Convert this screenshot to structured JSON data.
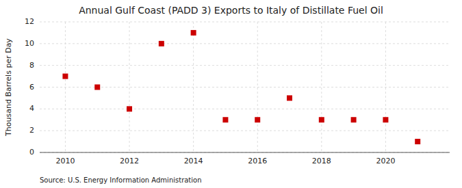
{
  "chart_data": {
    "type": "scatter",
    "title": "Annual Gulf Coast (PADD 3) Exports to Italy of Distillate Fuel Oil",
    "y_label": "Thousand Barrels per Day",
    "annotations": [
      "Source: U.S. Energy Information Administration"
    ],
    "x": [
      2010,
      2011,
      2012,
      2013,
      2014,
      2015,
      2016,
      2017,
      2018,
      2019,
      2020,
      2021
    ],
    "values": [
      7,
      6,
      4,
      10,
      11,
      3,
      3,
      5,
      3,
      3,
      3,
      1
    ],
    "color": "#cc0000",
    "marker": "square",
    "xlim": [
      2009.2,
      2022.0
    ],
    "xticks": [
      2010,
      2012,
      2014,
      2016,
      2018,
      2020
    ],
    "ylim": [
      0,
      12
    ],
    "yticks": [
      0,
      2,
      4,
      6,
      8,
      10,
      12
    ],
    "grid": true
  }
}
